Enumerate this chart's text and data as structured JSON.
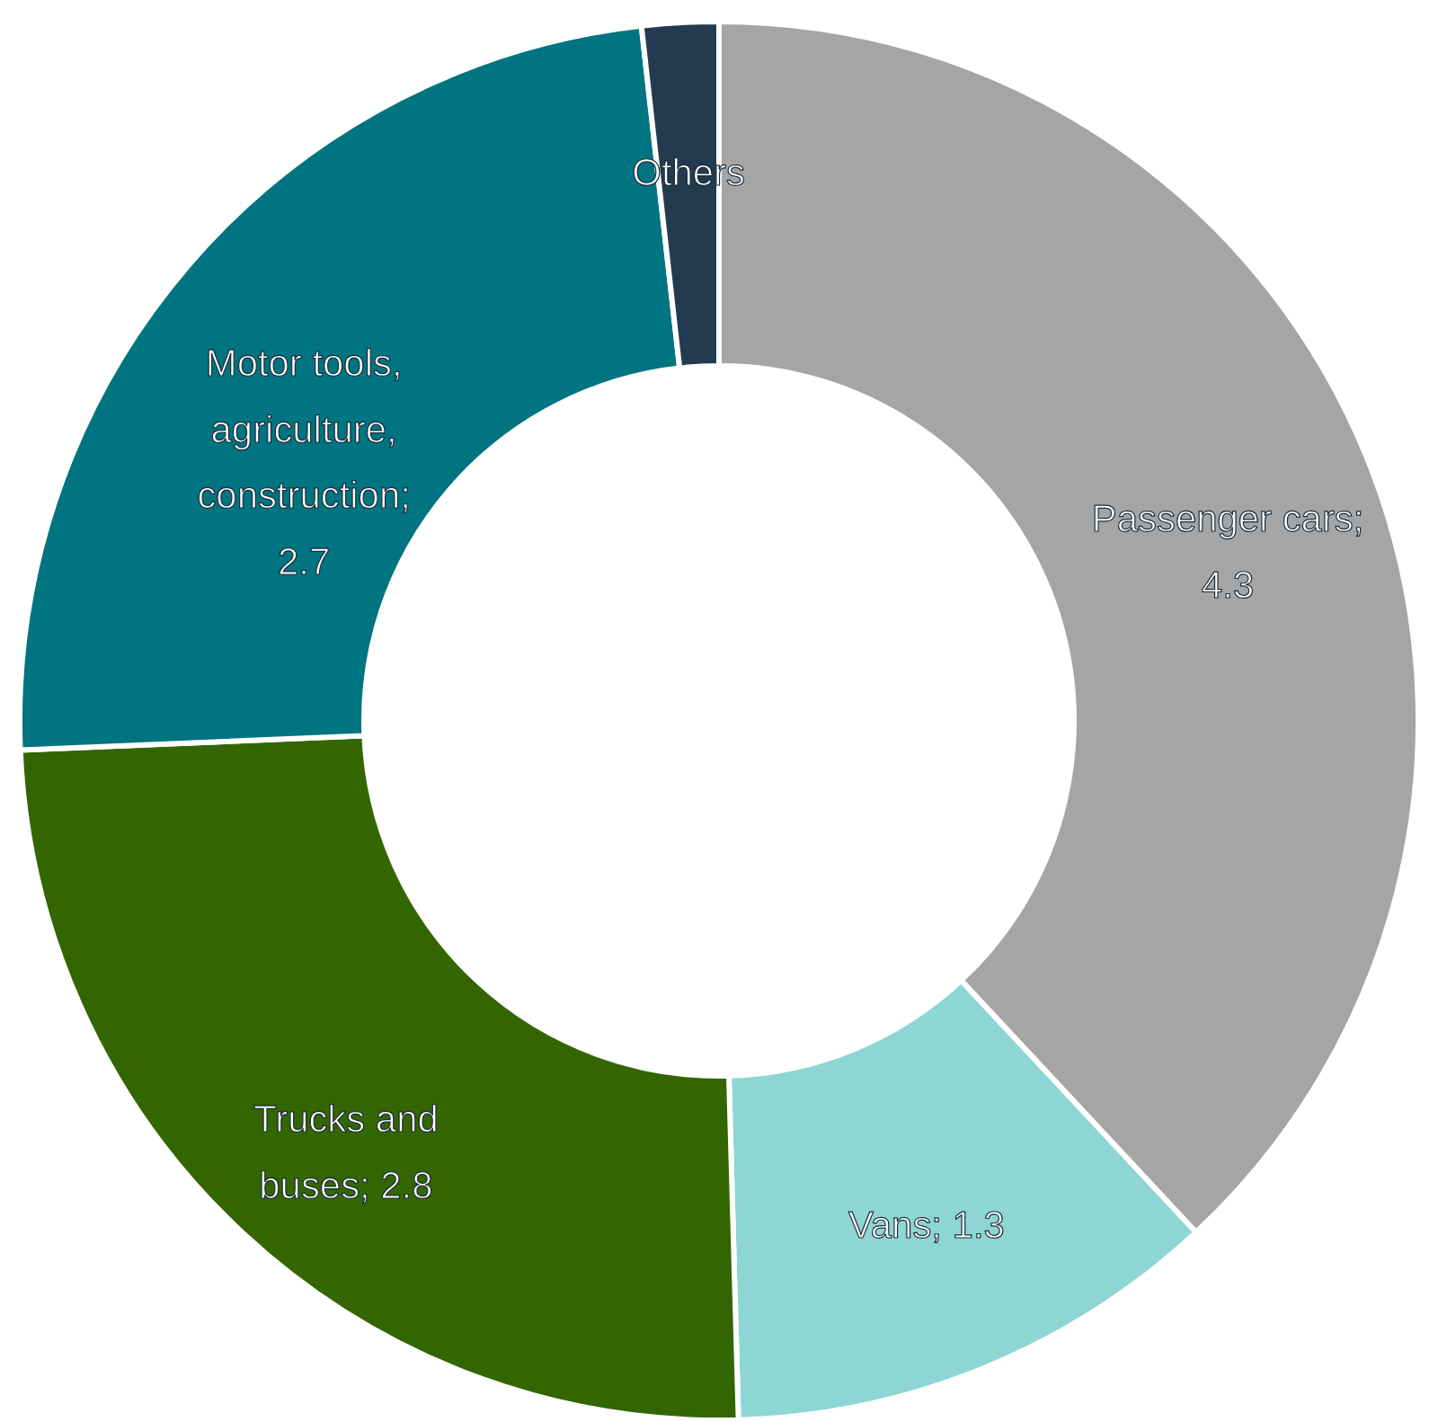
{
  "chart_data": {
    "type": "donut",
    "categories": [
      "Passenger cars; 4.3",
      "Vans; 1.3",
      "Trucks and buses; 2.8",
      "Motor tools, agriculture, construction; 2.7",
      "Others"
    ],
    "values": [
      4.3,
      1.3,
      2.8,
      2.7,
      0.2
    ],
    "colors": [
      "#a5a5a5",
      "#8dd6d4",
      "#336600",
      "#007480",
      "#243b4f"
    ],
    "legend": false
  }
}
